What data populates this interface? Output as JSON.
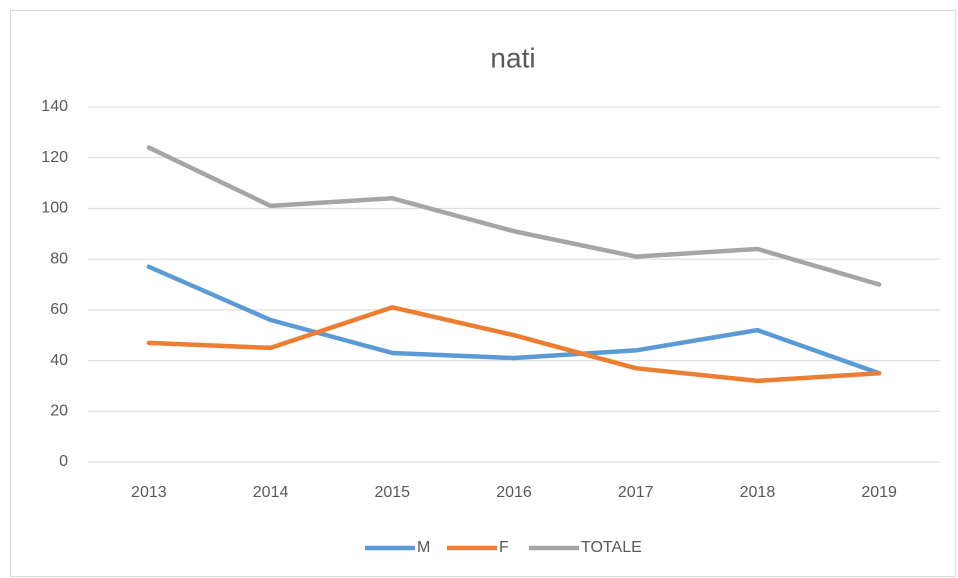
{
  "chart_data": {
    "type": "line",
    "title": "nati",
    "categories": [
      "2013",
      "2014",
      "2015",
      "2016",
      "2017",
      "2018",
      "2019"
    ],
    "series": [
      {
        "name": "M",
        "color": "#5b9bd5",
        "values": [
          77,
          56,
          43,
          41,
          44,
          52,
          35
        ]
      },
      {
        "name": "F",
        "color": "#ed7d31",
        "values": [
          47,
          45,
          61,
          50,
          37,
          32,
          35
        ]
      },
      {
        "name": "TOTALE",
        "color": "#a5a5a5",
        "values": [
          124,
          101,
          104,
          91,
          81,
          84,
          70
        ]
      }
    ],
    "ylim": [
      0,
      140
    ],
    "yticks": [
      0,
      20,
      40,
      60,
      80,
      100,
      120,
      140
    ],
    "grid": true,
    "legend": "bottom"
  }
}
